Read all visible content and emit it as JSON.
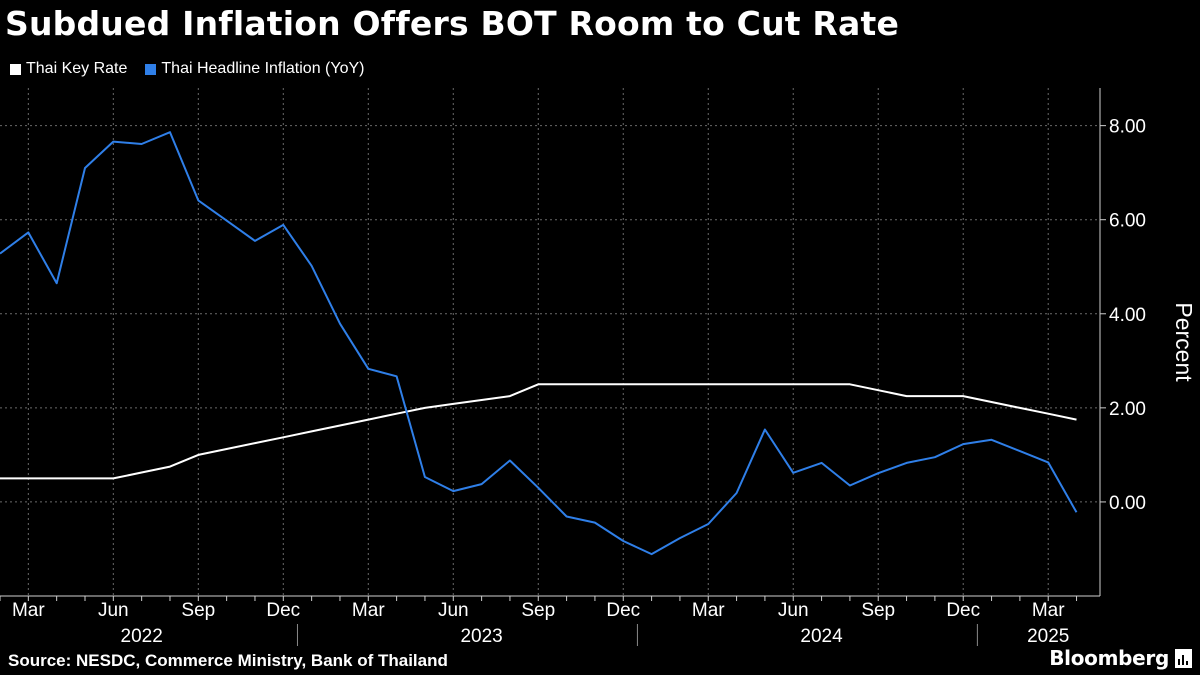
{
  "title": "Subdued Inflation Offers BOT Room to Cut Rate",
  "source": "Source: NESDC, Commerce Ministry, Bank of Thailand",
  "brand": "Bloomberg",
  "chart_data": {
    "type": "line",
    "ylabel": "Percent",
    "ylim": [
      -2,
      8.8
    ],
    "yticks": [
      0,
      2,
      4,
      6,
      8
    ],
    "ytick_labels": [
      "0.00",
      "2.00",
      "4.00",
      "6.00",
      "8.00"
    ],
    "y_axis_position": "right",
    "grid": true,
    "legend_position": "top-left",
    "x_months": [
      "2022-02",
      "2022-03",
      "2022-04",
      "2022-05",
      "2022-06",
      "2022-07",
      "2022-08",
      "2022-09",
      "2022-10",
      "2022-11",
      "2022-12",
      "2023-01",
      "2023-02",
      "2023-03",
      "2023-04",
      "2023-05",
      "2023-06",
      "2023-07",
      "2023-08",
      "2023-09",
      "2023-10",
      "2023-11",
      "2023-12",
      "2024-01",
      "2024-02",
      "2024-03",
      "2024-04",
      "2024-05",
      "2024-06",
      "2024-07",
      "2024-08",
      "2024-09",
      "2024-10",
      "2024-11",
      "2024-12",
      "2025-01",
      "2025-02",
      "2025-03",
      "2025-04"
    ],
    "x_tick_labels": [
      "Mar",
      "Jun",
      "Sep",
      "Dec",
      "Mar",
      "Jun",
      "Sep",
      "Dec",
      "Mar",
      "Jun",
      "Sep",
      "Dec",
      "Mar"
    ],
    "x_tick_months": [
      "2022-03",
      "2022-06",
      "2022-09",
      "2022-12",
      "2023-03",
      "2023-06",
      "2023-09",
      "2023-12",
      "2024-03",
      "2024-06",
      "2024-09",
      "2024-12",
      "2025-03"
    ],
    "year_labels": [
      "2022",
      "2023",
      "2024",
      "2025"
    ],
    "year_label_months": [
      "2022-07",
      "2023-07",
      "2024-07",
      "2025-03"
    ],
    "year_divider_months": [
      "2023-01",
      "2024-01",
      "2025-01"
    ],
    "series": [
      {
        "name": "Thai Key Rate",
        "color": "#ffffff",
        "values": [
          0.5,
          0.5,
          0.5,
          0.5,
          0.5,
          0.625,
          0.75,
          1.0,
          1.125,
          1.25,
          1.375,
          1.5,
          1.625,
          1.75,
          1.875,
          2.0,
          2.083,
          2.167,
          2.25,
          2.5,
          2.5,
          2.5,
          2.5,
          2.5,
          2.5,
          2.5,
          2.5,
          2.5,
          2.5,
          2.5,
          2.5,
          2.375,
          2.25,
          2.25,
          2.25,
          2.125,
          2.0,
          1.875,
          1.75
        ]
      },
      {
        "name": "Thai Headline Inflation (YoY)",
        "color": "#2f7fe8",
        "values": [
          5.28,
          5.73,
          4.65,
          7.1,
          7.66,
          7.61,
          7.86,
          6.41,
          5.98,
          5.55,
          5.89,
          5.02,
          3.79,
          2.83,
          2.67,
          0.53,
          0.23,
          0.38,
          0.88,
          0.3,
          -0.31,
          -0.44,
          -0.83,
          -1.11,
          -0.77,
          -0.47,
          0.19,
          1.54,
          0.62,
          0.83,
          0.35,
          0.61,
          0.83,
          0.95,
          1.23,
          1.32,
          1.08,
          0.84,
          -0.22
        ]
      }
    ]
  }
}
